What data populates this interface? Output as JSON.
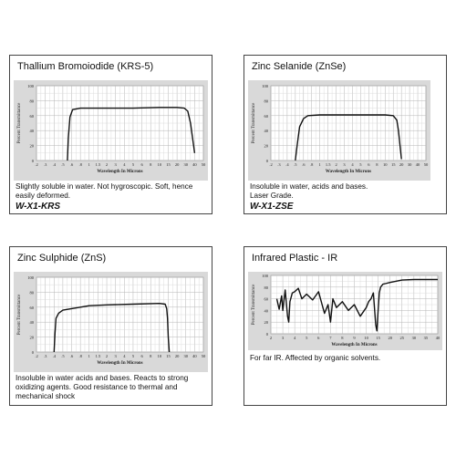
{
  "chart_data": [
    {
      "type": "line",
      "title": "Thallium Bromoiodide (KRS-5)",
      "xlabel": "Wavelength In Microns",
      "ylabel": "Percent Transmittance",
      "y_ticks": [
        "100",
        "80",
        "60",
        "40",
        "20",
        "0"
      ],
      "x_ticks": [
        ".2",
        ".3",
        ".4",
        ".5",
        ".6",
        ".8",
        "1",
        "1.5",
        "2",
        "3",
        "4",
        "5",
        "6",
        "8",
        "10",
        "15",
        "20",
        "30",
        "40",
        "50"
      ],
      "ylim": [
        0,
        100
      ],
      "grid": true,
      "series": [
        {
          "x": [
            0.55,
            0.56,
            0.58,
            0.62,
            0.8,
            1,
            2,
            5,
            10,
            20,
            28,
            32,
            35,
            38,
            40
          ],
          "y": [
            0,
            30,
            58,
            68,
            70,
            70,
            70,
            70,
            71,
            71,
            70,
            66,
            50,
            25,
            10
          ]
        }
      ],
      "description": "Slightly soluble in water. Not hygroscopic. Soft, hence easily deformed.",
      "code": "W-X1-KRS"
    },
    {
      "type": "line",
      "title": "Zinc Selanide (ZnSe)",
      "xlabel": "Wavelength In Microns",
      "ylabel": "Percent Transmittance",
      "y_ticks": [
        "100",
        "80",
        "60",
        "40",
        "20",
        "0"
      ],
      "x_ticks": [
        ".2",
        ".3",
        ".4",
        ".5",
        ".6",
        ".8",
        "1",
        "1.5",
        "2",
        "3",
        "4",
        "5",
        "6",
        "8",
        "10",
        "15",
        "20",
        "30",
        "40",
        "50"
      ],
      "ylim": [
        0,
        100
      ],
      "grid": true,
      "series": [
        {
          "x": [
            0.5,
            0.52,
            0.55,
            0.6,
            0.7,
            1,
            2,
            5,
            10,
            15,
            16,
            17,
            18,
            19,
            20
          ],
          "y": [
            0,
            20,
            45,
            56,
            60,
            61,
            61,
            61,
            61,
            60,
            57,
            54,
            40,
            20,
            2
          ]
        }
      ],
      "description": "Insoluble in water, acids and bases. Laser Grade.",
      "code": "W-X1-ZSE"
    },
    {
      "type": "line",
      "title": "Zinc Sulphide (ZnS)",
      "xlabel": "Wavelength In Microns",
      "ylabel": "Percent Transmittance",
      "y_ticks": [
        "100",
        "80",
        "60",
        "40",
        "20",
        "0"
      ],
      "x_ticks": [
        ".2",
        ".3",
        ".4",
        ".5",
        ".6",
        ".8",
        "1",
        "1.5",
        "2",
        "3",
        "4",
        "5",
        "6",
        "8",
        "10",
        "15",
        "20",
        "30",
        "40",
        "50"
      ],
      "ylim": [
        0,
        100
      ],
      "grid": true,
      "series": [
        {
          "x": [
            0.4,
            0.41,
            0.42,
            0.45,
            0.5,
            0.6,
            0.8,
            1,
            2,
            5,
            10,
            13,
            14,
            14.5,
            15,
            15.5
          ],
          "y": [
            0,
            25,
            45,
            52,
            56,
            58,
            60,
            62,
            63,
            64,
            65,
            64,
            58,
            45,
            20,
            0
          ]
        }
      ],
      "description": "Insoluble in water acids and bases. Reacts to strong oxidizing agents. Good resistance to thermal and mechanical shock",
      "code": ""
    },
    {
      "type": "line",
      "title": "Infrared Plastic - IR",
      "xlabel": "Wavelength In Microns",
      "ylabel": "Percent Transmittance",
      "y_ticks": [
        "100",
        "80",
        "60",
        "40",
        "20",
        "0"
      ],
      "x_ticks": [
        "2",
        "3",
        "4",
        "5",
        "6",
        "7",
        "8",
        "9",
        "10",
        "15",
        "20",
        "25",
        "30",
        "35",
        "40"
      ],
      "ylim": [
        0,
        100
      ],
      "grid": true,
      "series": [
        {
          "x": [
            2.5,
            2.7,
            2.9,
            3.0,
            3.2,
            3.4,
            3.5,
            3.6,
            3.8,
            4.0,
            4.3,
            4.6,
            5.0,
            5.5,
            6.0,
            6.5,
            6.8,
            7.0,
            7.2,
            7.5,
            8.0,
            8.5,
            9.0,
            9.5,
            10,
            11,
            12,
            13,
            14,
            14.5,
            15,
            15.5,
            16,
            17,
            18,
            20,
            25,
            30,
            35,
            40
          ],
          "y": [
            60,
            42,
            65,
            40,
            75,
            30,
            20,
            55,
            70,
            72,
            78,
            60,
            68,
            58,
            72,
            35,
            50,
            20,
            60,
            45,
            55,
            40,
            50,
            30,
            45,
            55,
            60,
            70,
            15,
            5,
            40,
            70,
            80,
            85,
            86,
            88,
            92,
            93,
            93,
            93
          ]
        }
      ],
      "description": "For far IR. Affected by organic solvents.",
      "code": ""
    }
  ]
}
